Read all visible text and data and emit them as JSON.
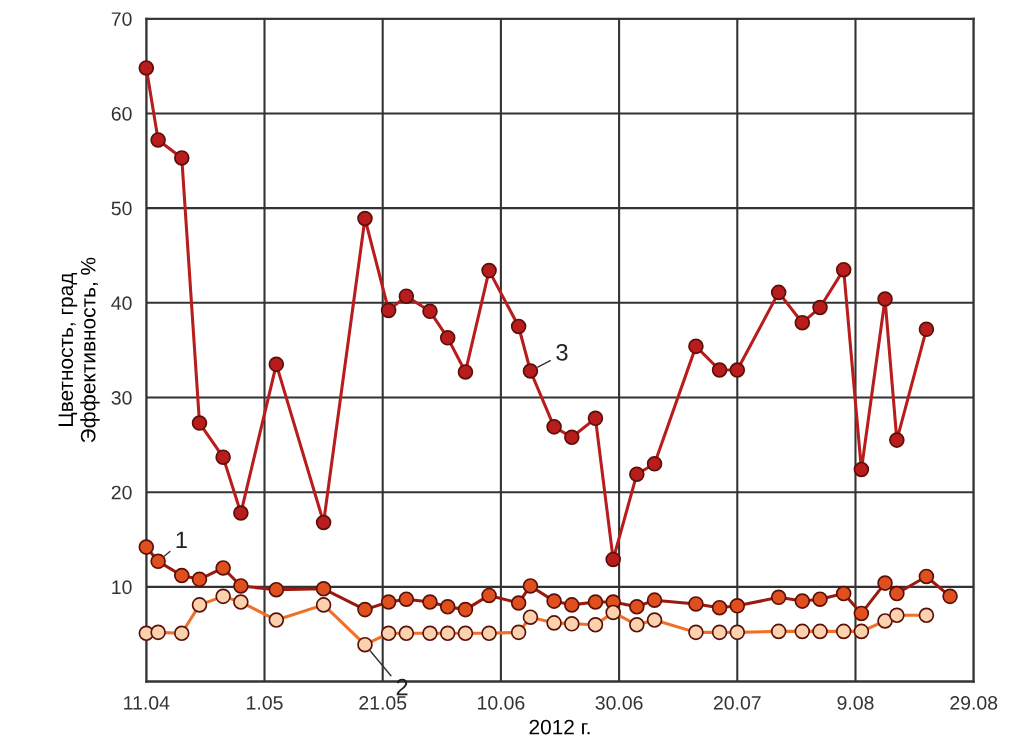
{
  "chart_data": {
    "type": "line",
    "xlabel": "2012 г.",
    "ylabel": "Цветность, град\nЭффективность, %",
    "ylim": [
      0,
      70
    ],
    "yticks": [
      {
        "value": 0,
        "label": null
      },
      10,
      20,
      30,
      40,
      50,
      60,
      70
    ],
    "xlim": [
      "2012-04-11",
      "2012-08-29"
    ],
    "xticks": [
      {
        "value": "2012-04-11",
        "label": "11.04"
      },
      {
        "value": "2012-05-01",
        "label": "1.05"
      },
      {
        "value": "2012-05-21",
        "label": "21.05"
      },
      {
        "value": "2012-06-10",
        "label": "10.06"
      },
      {
        "value": "2012-06-30",
        "label": "30.06"
      },
      {
        "value": "2012-07-20",
        "label": "20.07"
      },
      {
        "value": "2012-08-09",
        "label": "9.08"
      },
      {
        "value": "2012-08-29",
        "label": "29.08"
      }
    ],
    "grid": true,
    "legend": false,
    "marker": "circle",
    "line_style": "solid",
    "series": [
      {
        "name": "1",
        "color": "#e0501e",
        "x": [
          "2012-04-11",
          "2012-04-13",
          "2012-04-17",
          "2012-04-20",
          "2012-04-24",
          "2012-04-27",
          "2012-05-03",
          "2012-05-11",
          "2012-05-18",
          "2012-05-22",
          "2012-05-25",
          "2012-05-29",
          "2012-06-01",
          "2012-06-04",
          "2012-06-08",
          "2012-06-13",
          "2012-06-15",
          "2012-06-19",
          "2012-06-22",
          "2012-06-26",
          "2012-06-29",
          "2012-07-03",
          "2012-07-06",
          "2012-07-13",
          "2012-07-17",
          "2012-07-20",
          "2012-07-27",
          "2012-07-31",
          "2012-08-03",
          "2012-08-07",
          "2012-08-10",
          "2012-08-14",
          "2012-08-16",
          "2012-08-21",
          "2012-08-25"
        ],
        "values": [
          14.2,
          12.7,
          11.2,
          10.8,
          12.0,
          10.1,
          9.7,
          9.8,
          7.6,
          8.4,
          8.7,
          8.4,
          7.9,
          7.6,
          9.1,
          8.3,
          10.1,
          8.5,
          8.1,
          8.4,
          8.4,
          7.9,
          8.6,
          8.2,
          7.8,
          8.0,
          8.9,
          8.5,
          8.7,
          9.3,
          7.2,
          10.4,
          9.3,
          11.1,
          9.0
        ]
      },
      {
        "name": "2",
        "color": "#f07028",
        "x": [
          "2012-04-11",
          "2012-04-13",
          "2012-04-17",
          "2012-04-20",
          "2012-04-24",
          "2012-04-27",
          "2012-05-03",
          "2012-05-11",
          "2012-05-18",
          "2012-05-22",
          "2012-05-25",
          "2012-05-29",
          "2012-06-01",
          "2012-06-04",
          "2012-06-08",
          "2012-06-13",
          "2012-06-15",
          "2012-06-19",
          "2012-06-22",
          "2012-06-26",
          "2012-06-29",
          "2012-07-03",
          "2012-07-06",
          "2012-07-13",
          "2012-07-17",
          "2012-07-20",
          "2012-07-27",
          "2012-07-31",
          "2012-08-03",
          "2012-08-07",
          "2012-08-10",
          "2012-08-14",
          "2012-08-16",
          "2012-08-21"
        ],
        "values": [
          5.1,
          5.2,
          5.1,
          8.1,
          9.0,
          8.4,
          6.5,
          8.1,
          3.9,
          5.1,
          5.1,
          5.1,
          5.1,
          5.1,
          5.1,
          5.2,
          6.8,
          6.2,
          6.1,
          6.0,
          7.3,
          6.0,
          6.5,
          5.2,
          5.2,
          5.2,
          5.3,
          5.3,
          5.3,
          5.3,
          5.3,
          6.4,
          7.0,
          7.0
        ]
      },
      {
        "name": "3",
        "color": "#b81c1c",
        "x": [
          "2012-04-11",
          "2012-04-13",
          "2012-04-17",
          "2012-04-20",
          "2012-04-24",
          "2012-04-27",
          "2012-05-03",
          "2012-05-11",
          "2012-05-18",
          "2012-05-22",
          "2012-05-25",
          "2012-05-29",
          "2012-06-01",
          "2012-06-04",
          "2012-06-08",
          "2012-06-13",
          "2012-06-15",
          "2012-06-19",
          "2012-06-22",
          "2012-06-26",
          "2012-06-29",
          "2012-07-03",
          "2012-07-06",
          "2012-07-13",
          "2012-07-17",
          "2012-07-20",
          "2012-07-27",
          "2012-07-31",
          "2012-08-03",
          "2012-08-07",
          "2012-08-10",
          "2012-08-14",
          "2012-08-16",
          "2012-08-21"
        ],
        "values": [
          64.8,
          57.2,
          55.3,
          27.3,
          23.7,
          17.8,
          33.5,
          16.8,
          48.9,
          39.2,
          40.7,
          39.1,
          36.3,
          32.7,
          43.4,
          37.5,
          32.8,
          26.9,
          25.8,
          27.8,
          12.9,
          21.9,
          23.0,
          35.4,
          32.9,
          32.9,
          41.1,
          37.9,
          39.5,
          43.5,
          22.4,
          40.4,
          25.5,
          37.2
        ]
      }
    ]
  }
}
